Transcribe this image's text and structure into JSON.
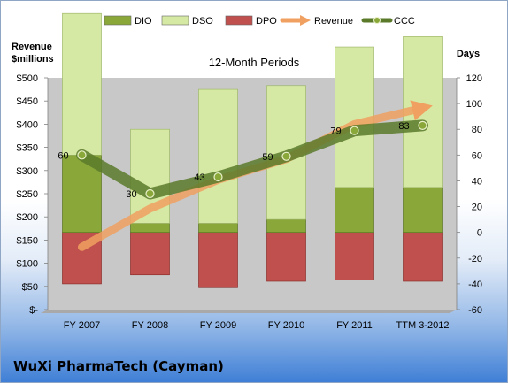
{
  "chart_data": {
    "type": "bar",
    "subtitle": "12-Month Periods",
    "company": "WuXi PharmaTech (Cayman)",
    "y_left_label_line1": "Revenue",
    "y_left_label_line2": "$millions",
    "y_right_label": "Days",
    "y_left_range": [
      0,
      500
    ],
    "y_left_ticks": [
      "$-",
      "$50",
      "$100",
      "$150",
      "$200",
      "$250",
      "$300",
      "$350",
      "$400",
      "$450",
      "$500"
    ],
    "y_right_range": [
      -60,
      120
    ],
    "y_right_ticks": [
      "-60",
      "-40",
      "-20",
      "0",
      "20",
      "40",
      "60",
      "80",
      "100",
      "120"
    ],
    "categories": [
      "FY 2007",
      "FY 2008",
      "FY 2009",
      "FY 2010",
      "FY 2011",
      "TTM 3-2012"
    ],
    "legend": [
      "DIO",
      "DSO",
      "DPO",
      "Revenue",
      "CCC"
    ],
    "colors": {
      "DIO": "#8aa83a",
      "DSO": "#d6e9a4",
      "DPO": "#c0504d",
      "Revenue": "#f0a060",
      "CCC": "#5a7a2a",
      "plot_bg": "#c8c8c8"
    },
    "series": {
      "DIO_days": [
        60,
        7,
        7,
        10,
        35,
        35
      ],
      "DSO_days": [
        110,
        73,
        104,
        104,
        109,
        117
      ],
      "DPO_days": [
        -40,
        -33,
        -43,
        -38,
        -37,
        -38
      ],
      "revenue_musd": [
        135,
        218,
        280,
        325,
        400,
        435
      ],
      "CCC_days": [
        60,
        30,
        43,
        59,
        79,
        83
      ]
    },
    "ccc_labels": [
      "60",
      "30",
      "43",
      "59",
      "79",
      "83"
    ],
    "grid": false,
    "legend_position": "top"
  }
}
